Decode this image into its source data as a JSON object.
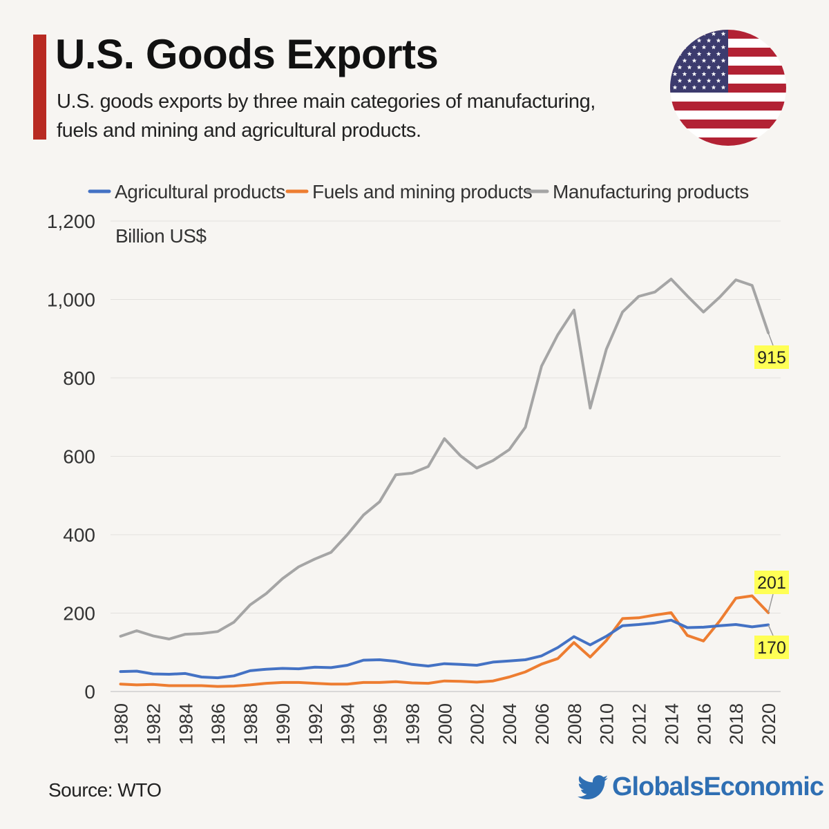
{
  "header": {
    "title": "U.S. Goods Exports",
    "subtitle": "U.S. goods exports by three main categories of manufacturing, fuels and mining and agricultural products."
  },
  "colors": {
    "accent": "#b82a22",
    "agricultural": "#4472c4",
    "fuels": "#ed7d31",
    "manufacturing": "#a5a5a5",
    "callout": "#ffff55",
    "brand": "#2f6fb3"
  },
  "flag_icon": "us-flag-icon",
  "chart_data": {
    "type": "line",
    "ylabel": "Billion US$",
    "ylim": [
      0,
      1200
    ],
    "yticks": [
      0,
      200,
      400,
      600,
      800,
      1000,
      1200
    ],
    "ytick_labels": [
      "0",
      "200",
      "400",
      "600",
      "800",
      "1,000",
      "1,200"
    ],
    "xtick_labels": [
      "1980",
      "1982",
      "1984",
      "1986",
      "1988",
      "1990",
      "1992",
      "1994",
      "1996",
      "1998",
      "2000",
      "2002",
      "2004",
      "2006",
      "2008",
      "2010",
      "2012",
      "2014",
      "2016",
      "2018",
      "2020"
    ],
    "grid": true,
    "legend_position": "top",
    "x": [
      1980,
      1981,
      1982,
      1983,
      1984,
      1985,
      1986,
      1987,
      1988,
      1989,
      1990,
      1991,
      1992,
      1993,
      1994,
      1995,
      1996,
      1997,
      1998,
      1999,
      2000,
      2001,
      2002,
      2003,
      2004,
      2005,
      2006,
      2007,
      2008,
      2009,
      2010,
      2011,
      2012,
      2013,
      2014,
      2015,
      2016,
      2017,
      2018,
      2019,
      2020
    ],
    "series": [
      {
        "name": "Agricultural products",
        "values": [
          51,
          52,
          45,
          44,
          46,
          37,
          35,
          40,
          53,
          57,
          59,
          58,
          62,
          61,
          67,
          80,
          81,
          77,
          69,
          65,
          71,
          69,
          67,
          75,
          78,
          81,
          91,
          112,
          140,
          119,
          141,
          168,
          171,
          175,
          182,
          163,
          164,
          168,
          171,
          165,
          170
        ]
      },
      {
        "name": "Fuels and mining products",
        "values": [
          19,
          17,
          18,
          15,
          15,
          15,
          13,
          14,
          17,
          21,
          23,
          23,
          21,
          19,
          19,
          23,
          23,
          25,
          22,
          21,
          27,
          26,
          24,
          27,
          37,
          50,
          70,
          84,
          125,
          88,
          130,
          186,
          188,
          195,
          201,
          143,
          129,
          180,
          238,
          244,
          201
        ]
      },
      {
        "name": "Manufacturing products",
        "values": [
          141,
          155,
          142,
          134,
          146,
          148,
          153,
          177,
          221,
          250,
          288,
          318,
          338,
          355,
          400,
          450,
          484,
          553,
          557,
          574,
          645,
          601,
          570,
          589,
          617,
          674,
          830,
          910,
          973,
          723,
          873,
          968,
          1008,
          1019,
          1052,
          1009,
          968,
          1006,
          1050,
          1036,
          915
        ]
      }
    ],
    "annotations": [
      {
        "series": "Manufacturing products",
        "x": 2020,
        "label": "915"
      },
      {
        "series": "Fuels and mining products",
        "x": 2020,
        "label": "201"
      },
      {
        "series": "Agricultural products",
        "x": 2020,
        "label": "170"
      }
    ]
  },
  "footer": {
    "source": "Source: WTO",
    "brand_name": "GlobalsEconomic",
    "brand_icon": "twitter-bird-icon"
  }
}
